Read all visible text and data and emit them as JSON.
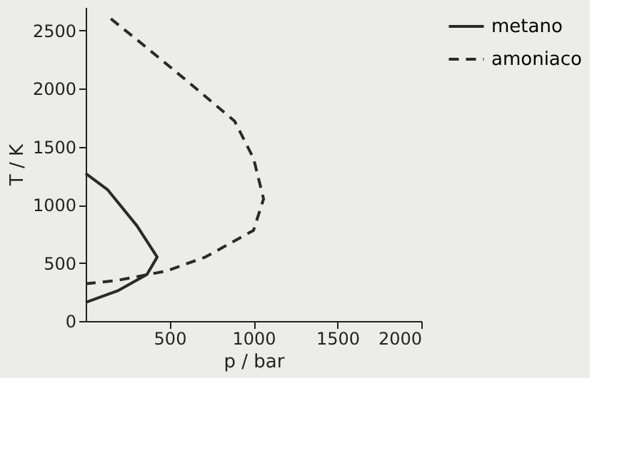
{
  "chart_data": {
    "type": "line",
    "xlabel": "p / bar",
    "ylabel": "T / K",
    "xlim": [
      0,
      2000
    ],
    "xticks": [
      500,
      1000,
      1500,
      2000
    ],
    "ylim": [
      0,
      2700
    ],
    "yticks": [
      0,
      500,
      1000,
      1500,
      2000,
      2500
    ],
    "grid": false,
    "legend": "right",
    "marker": "none",
    "series": [
      {
        "name": "metano",
        "color": "#2a2a2a",
        "line_style": "solid",
        "x": [
          0,
          130,
          305,
          426,
          365,
          190,
          0
        ],
        "values": [
          1270,
          1130,
          820,
          550,
          400,
          260,
          160
        ]
      },
      {
        "name": "amoniaco",
        "color": "#2a2a2a",
        "line_style": "dashed",
        "x": [
          150,
          305,
          600,
          887,
          1000,
          1060,
          1000,
          713,
          480,
          190,
          0
        ],
        "values": [
          2600,
          2420,
          2070,
          1720,
          1400,
          1050,
          780,
          550,
          430,
          350,
          320
        ]
      }
    ]
  }
}
